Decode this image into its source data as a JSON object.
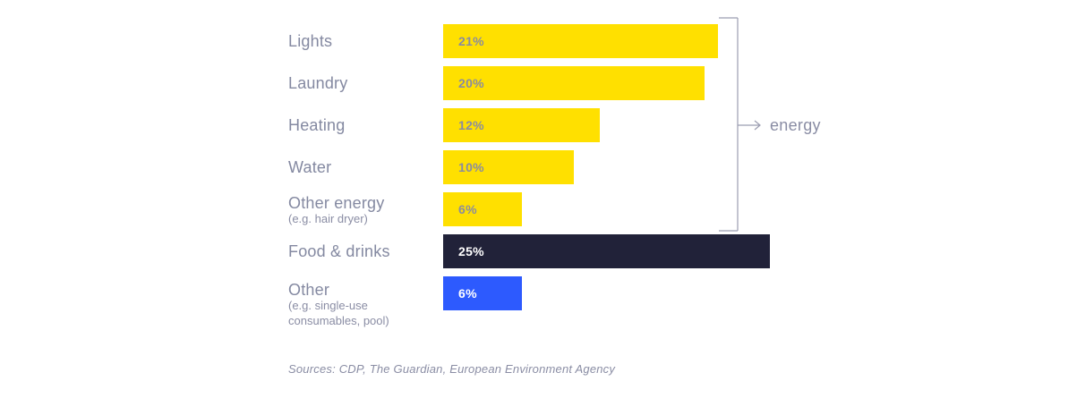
{
  "chart_data": {
    "type": "bar",
    "orientation": "horizontal",
    "title": "",
    "xlabel": "",
    "ylabel": "",
    "xlim": [
      0,
      25
    ],
    "grid": false,
    "unit": "%",
    "categories": [
      "Lights",
      "Laundry",
      "Heating",
      "Water",
      "Other energy (e.g. hair dryer)",
      "Food & drinks",
      "Other (e.g. single-use consumables, pool)"
    ],
    "values": [
      21,
      20,
      12,
      10,
      6,
      25,
      6
    ],
    "bar_colors": [
      "#FFE000",
      "#FFE000",
      "#FFE000",
      "#FFE000",
      "#FFE000",
      "#212239",
      "#2D5AFE"
    ],
    "group_annotation": {
      "label": "energy",
      "applies_to": [
        "Lights",
        "Laundry",
        "Heating",
        "Water",
        "Other energy"
      ]
    }
  },
  "rows": [
    {
      "label": "Lights",
      "sublabels": [],
      "value_label": "21%",
      "pct": 21,
      "bar_color": "#FFE000",
      "value_color": "#8A8CA0"
    },
    {
      "label": "Laundry",
      "sublabels": [],
      "value_label": "20%",
      "pct": 20,
      "bar_color": "#FFE000",
      "value_color": "#8A8CA0"
    },
    {
      "label": "Heating",
      "sublabels": [],
      "value_label": "12%",
      "pct": 12,
      "bar_color": "#FFE000",
      "value_color": "#8A8CA0"
    },
    {
      "label": "Water",
      "sublabels": [],
      "value_label": "10%",
      "pct": 10,
      "bar_color": "#FFE000",
      "value_color": "#8A8CA0"
    },
    {
      "label": "Other energy",
      "sublabels": [
        "(e.g. hair dryer)"
      ],
      "value_label": "6%",
      "pct": 6,
      "bar_color": "#FFE000",
      "value_color": "#8A8CA0"
    },
    {
      "label": "Food & drinks",
      "sublabels": [],
      "value_label": "25%",
      "pct": 25,
      "bar_color": "#212239",
      "value_color": "#FFFFFF"
    },
    {
      "label": "Other",
      "sublabels": [
        "(e.g. single-use",
        "consumables, pool)"
      ],
      "value_label": "6%",
      "pct": 6,
      "bar_color": "#2D5AFE",
      "value_color": "#FFFFFF"
    }
  ],
  "annotation": {
    "label": "energy"
  },
  "footer": {
    "sources": "Sources: CDP, The Guardian, European Environment Agency"
  },
  "colors": {
    "energy_bar": "#FFE000",
    "food_bar": "#212239",
    "other_bar": "#2D5AFE",
    "label_text": "#8489A1",
    "bracket_line": "#9B9DB0",
    "background": "#FFFFFF"
  }
}
